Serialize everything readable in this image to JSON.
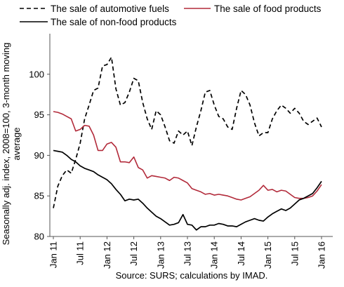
{
  "chart_data": {
    "type": "line",
    "title": "",
    "ylabel": "Seasonally adj. index, 2008=100, 3-month moving average",
    "ylabel_lines": [
      "Seasonally adj. index, 2008=100, 3-month moving",
      "average"
    ],
    "xlabel": "",
    "source": "Source: SURS; calculations by IMAD.",
    "ylim": [
      80,
      105
    ],
    "yticks": [
      80,
      85,
      90,
      95,
      100
    ],
    "x_tick_labels": [
      "Jan 11",
      "Jul 11",
      "Jan 12",
      "Jul 12",
      "Jan 13",
      "Jul 13",
      "Jan 14",
      "Jul 14",
      "Jan 15",
      "Jul 15",
      "Jan 16"
    ],
    "x": [
      "Jan 11",
      "Feb 11",
      "Mar 11",
      "Apr 11",
      "May 11",
      "Jun 11",
      "Jul 11",
      "Aug 11",
      "Sep 11",
      "Oct 11",
      "Nov 11",
      "Dec 11",
      "Jan 12",
      "Feb 12",
      "Mar 12",
      "Apr 12",
      "May 12",
      "Jun 12",
      "Jul 12",
      "Aug 12",
      "Sep 12",
      "Oct 12",
      "Nov 12",
      "Dec 12",
      "Jan 13",
      "Feb 13",
      "Mar 13",
      "Apr 13",
      "May 13",
      "Jun 13",
      "Jul 13",
      "Aug 13",
      "Sep 13",
      "Oct 13",
      "Nov 13",
      "Dec 13",
      "Jan 14",
      "Feb 14",
      "Mar 14",
      "Apr 14",
      "May 14",
      "Jun 14",
      "Jul 14",
      "Aug 14",
      "Sep 14",
      "Oct 14",
      "Nov 14",
      "Dec 14",
      "Jan 15",
      "Feb 15",
      "Mar 15",
      "Apr 15",
      "May 15",
      "Jun 15",
      "Jul 15",
      "Aug 15",
      "Sep 15",
      "Oct 15",
      "Nov 15",
      "Dec 15",
      "Jan 16"
    ],
    "grid": false,
    "legend_position": "top",
    "series": [
      {
        "name": "The sale of automotive fuels",
        "style": "dashed",
        "color": "#000000",
        "values": [
          83.5,
          86.2,
          87.5,
          88.2,
          87.8,
          89.5,
          91.5,
          94.5,
          96.2,
          98.0,
          98.3,
          101.0,
          101.2,
          102.1,
          98.2,
          96.2,
          96.5,
          97.8,
          99.5,
          99.2,
          96.5,
          94.5,
          93.2,
          95.5,
          95.0,
          93.5,
          91.8,
          91.5,
          93.0,
          92.5,
          93.0,
          91.2,
          93.5,
          95.5,
          97.8,
          98.0,
          96.2,
          94.8,
          94.5,
          93.5,
          93.2,
          95.8,
          98.0,
          97.5,
          96.2,
          94.0,
          92.4,
          92.8,
          92.8,
          94.5,
          95.5,
          96.2,
          95.8,
          95.2,
          95.8,
          95.2,
          94.2,
          93.8,
          94.2,
          94.6,
          93.5
        ]
      },
      {
        "name": "The sale of food products",
        "style": "solid",
        "color": "#b22a3a",
        "values": [
          95.4,
          95.3,
          95.1,
          94.8,
          94.5,
          93.0,
          93.2,
          93.7,
          93.6,
          92.5,
          90.6,
          90.6,
          91.4,
          91.6,
          91.0,
          89.2,
          89.2,
          89.1,
          89.8,
          88.5,
          88.2,
          87.2,
          87.5,
          87.4,
          87.3,
          87.2,
          86.9,
          87.3,
          87.2,
          86.9,
          86.6,
          85.9,
          85.7,
          85.5,
          85.2,
          85.3,
          85.1,
          85.2,
          85.1,
          85.0,
          84.8,
          84.6,
          84.5,
          84.7,
          84.9,
          85.3,
          85.7,
          86.3,
          85.7,
          85.8,
          85.5,
          85.7,
          85.6,
          85.2,
          84.8,
          84.7,
          84.7,
          84.8,
          85.0,
          85.6,
          86.4
        ]
      },
      {
        "name": "The sale of non-food products",
        "style": "solid",
        "color": "#000000",
        "values": [
          90.6,
          90.5,
          90.4,
          90.0,
          89.5,
          89.2,
          88.7,
          88.4,
          88.2,
          88.0,
          87.6,
          87.3,
          87.0,
          86.5,
          85.8,
          85.2,
          84.4,
          84.6,
          84.5,
          84.6,
          84.1,
          83.5,
          83.0,
          82.5,
          82.2,
          81.8,
          81.4,
          81.5,
          81.7,
          82.7,
          81.5,
          81.4,
          80.8,
          81.2,
          81.2,
          81.4,
          81.4,
          81.6,
          81.5,
          81.3,
          81.3,
          81.2,
          81.5,
          81.8,
          82.0,
          82.2,
          82.0,
          81.9,
          82.4,
          82.8,
          83.1,
          83.4,
          83.2,
          83.5,
          84.0,
          84.5,
          84.7,
          85.0,
          85.3,
          86.0,
          86.8
        ]
      }
    ]
  }
}
